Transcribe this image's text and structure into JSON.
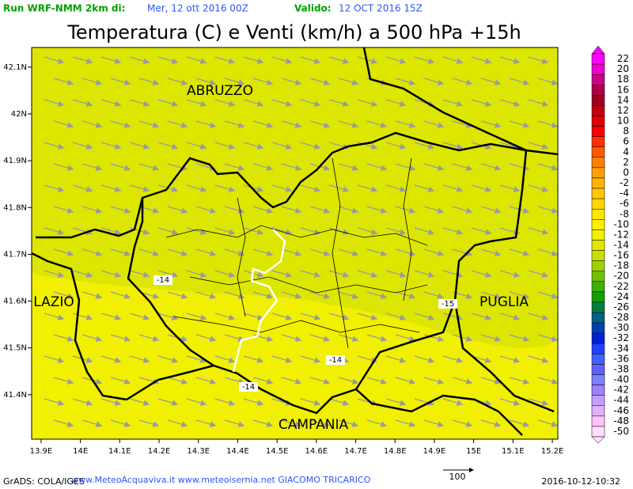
{
  "header": {
    "run_label": "Run WRF-NMM 2km di:",
    "run_date": "Mer, 12 ott 2016 00Z",
    "valid_label": "Valido:",
    "valid_date": "12 OCT 2016 15Z"
  },
  "title": "Temperatura (C) e Venti (km/h) a 500 hPa +15h",
  "map": {
    "xlim": [
      13.876,
      15.214
    ],
    "ylim": [
      41.305,
      42.142
    ],
    "xticks": [
      {
        "value": 13.9,
        "label": "13.9E"
      },
      {
        "value": 14.0,
        "label": "14E"
      },
      {
        "value": 14.1,
        "label": "14.1E"
      },
      {
        "value": 14.2,
        "label": "14.2E"
      },
      {
        "value": 14.3,
        "label": "14.3E"
      },
      {
        "value": 14.4,
        "label": "14.4E"
      },
      {
        "value": 14.5,
        "label": "14.5E"
      },
      {
        "value": 14.6,
        "label": "14.6E"
      },
      {
        "value": 14.7,
        "label": "14.7E"
      },
      {
        "value": 14.8,
        "label": "14.8E"
      },
      {
        "value": 14.9,
        "label": "14.9E"
      },
      {
        "value": 15.0,
        "label": "15E"
      },
      {
        "value": 15.1,
        "label": "15.1E"
      },
      {
        "value": 15.2,
        "label": "15.2E"
      }
    ],
    "yticks": [
      {
        "value": 42.1,
        "label": "42.1N"
      },
      {
        "value": 42.0,
        "label": "42N"
      },
      {
        "value": 41.9,
        "label": "41.9N"
      },
      {
        "value": 41.8,
        "label": "41.8N"
      },
      {
        "value": 41.7,
        "label": "41.7N"
      },
      {
        "value": 41.6,
        "label": "41.6N"
      },
      {
        "value": 41.5,
        "label": "41.5N"
      },
      {
        "value": 41.4,
        "label": "41.4N"
      }
    ],
    "regions": [
      "ABRUZZO",
      "LAZIO",
      "PUGLIA",
      "CAMPANIA"
    ],
    "contour_labels": [
      -14,
      -15,
      -14,
      -14
    ]
  },
  "colorbar": {
    "levels": [
      22,
      20,
      18,
      16,
      14,
      12,
      10,
      8,
      6,
      4,
      2,
      0,
      -2,
      -4,
      -6,
      -8,
      -10,
      -12,
      -14,
      -16,
      -18,
      -20,
      -22,
      -24,
      -26,
      -28,
      -30,
      -32,
      -34,
      -36,
      -38,
      -40,
      -42,
      -44,
      -46,
      -48,
      -50
    ],
    "colors": [
      "#ff00ff",
      "#ee00cc",
      "#cc0088",
      "#aa0044",
      "#a00020",
      "#c00010",
      "#e00000",
      "#ff0000",
      "#ff3000",
      "#ff5a00",
      "#ff8000",
      "#ffa000",
      "#ffb400",
      "#ffc800",
      "#ffd800",
      "#ffe600",
      "#fff000",
      "#f0f000",
      "#e0e800",
      "#c8e000",
      "#a0d000",
      "#70c000",
      "#40b000",
      "#10a000",
      "#008040",
      "#006080",
      "#0040b0",
      "#0020d0",
      "#2040ff",
      "#4060ff",
      "#6060ff",
      "#8080ff",
      "#a080ff",
      "#c0a0ff",
      "#e0b0ff",
      "#ffc0ff",
      "#ffe0ff"
    ]
  },
  "footer": {
    "credit": "GrADS: COLA/IGES",
    "sites": "www.MeteoAcquaviva.it www.meteoisernia.net GIACOMO TRICARICO",
    "vector_scale": "100",
    "timestamp": "2016-10-12-10:32"
  }
}
